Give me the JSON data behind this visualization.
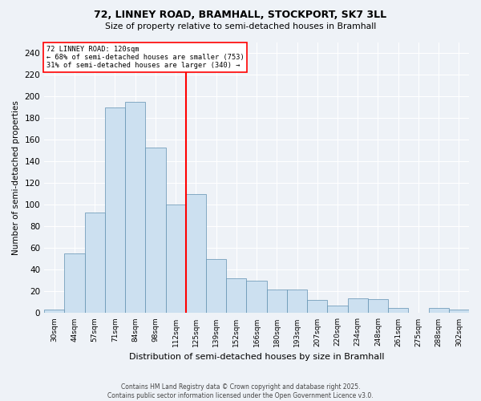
{
  "title": "72, LINNEY ROAD, BRAMHALL, STOCKPORT, SK7 3LL",
  "subtitle": "Size of property relative to semi-detached houses in Bramhall",
  "xlabel": "Distribution of semi-detached houses by size in Bramhall",
  "ylabel": "Number of semi-detached properties",
  "bar_color": "#cce0f0",
  "bar_edge_color": "#6090b0",
  "vline_x": 6.5,
  "vline_color": "red",
  "annotation_title": "72 LINNEY ROAD: 120sqm",
  "annotation_line1": "← 68% of semi-detached houses are smaller (753)",
  "annotation_line2": "31% of semi-detached houses are larger (340) →",
  "categories": [
    "30sqm",
    "44sqm",
    "57sqm",
    "71sqm",
    "84sqm",
    "98sqm",
    "112sqm",
    "125sqm",
    "139sqm",
    "152sqm",
    "166sqm",
    "180sqm",
    "193sqm",
    "207sqm",
    "220sqm",
    "234sqm",
    "248sqm",
    "261sqm",
    "275sqm",
    "288sqm",
    "302sqm"
  ],
  "values": [
    3,
    55,
    93,
    190,
    195,
    153,
    100,
    110,
    50,
    32,
    30,
    22,
    22,
    12,
    7,
    14,
    13,
    5,
    0,
    5,
    3
  ],
  "ylim": [
    0,
    250
  ],
  "yticks": [
    0,
    20,
    40,
    60,
    80,
    100,
    120,
    140,
    160,
    180,
    200,
    220,
    240
  ],
  "footer1": "Contains HM Land Registry data © Crown copyright and database right 2025.",
  "footer2": "Contains public sector information licensed under the Open Government Licence v3.0.",
  "background_color": "#eef2f7"
}
